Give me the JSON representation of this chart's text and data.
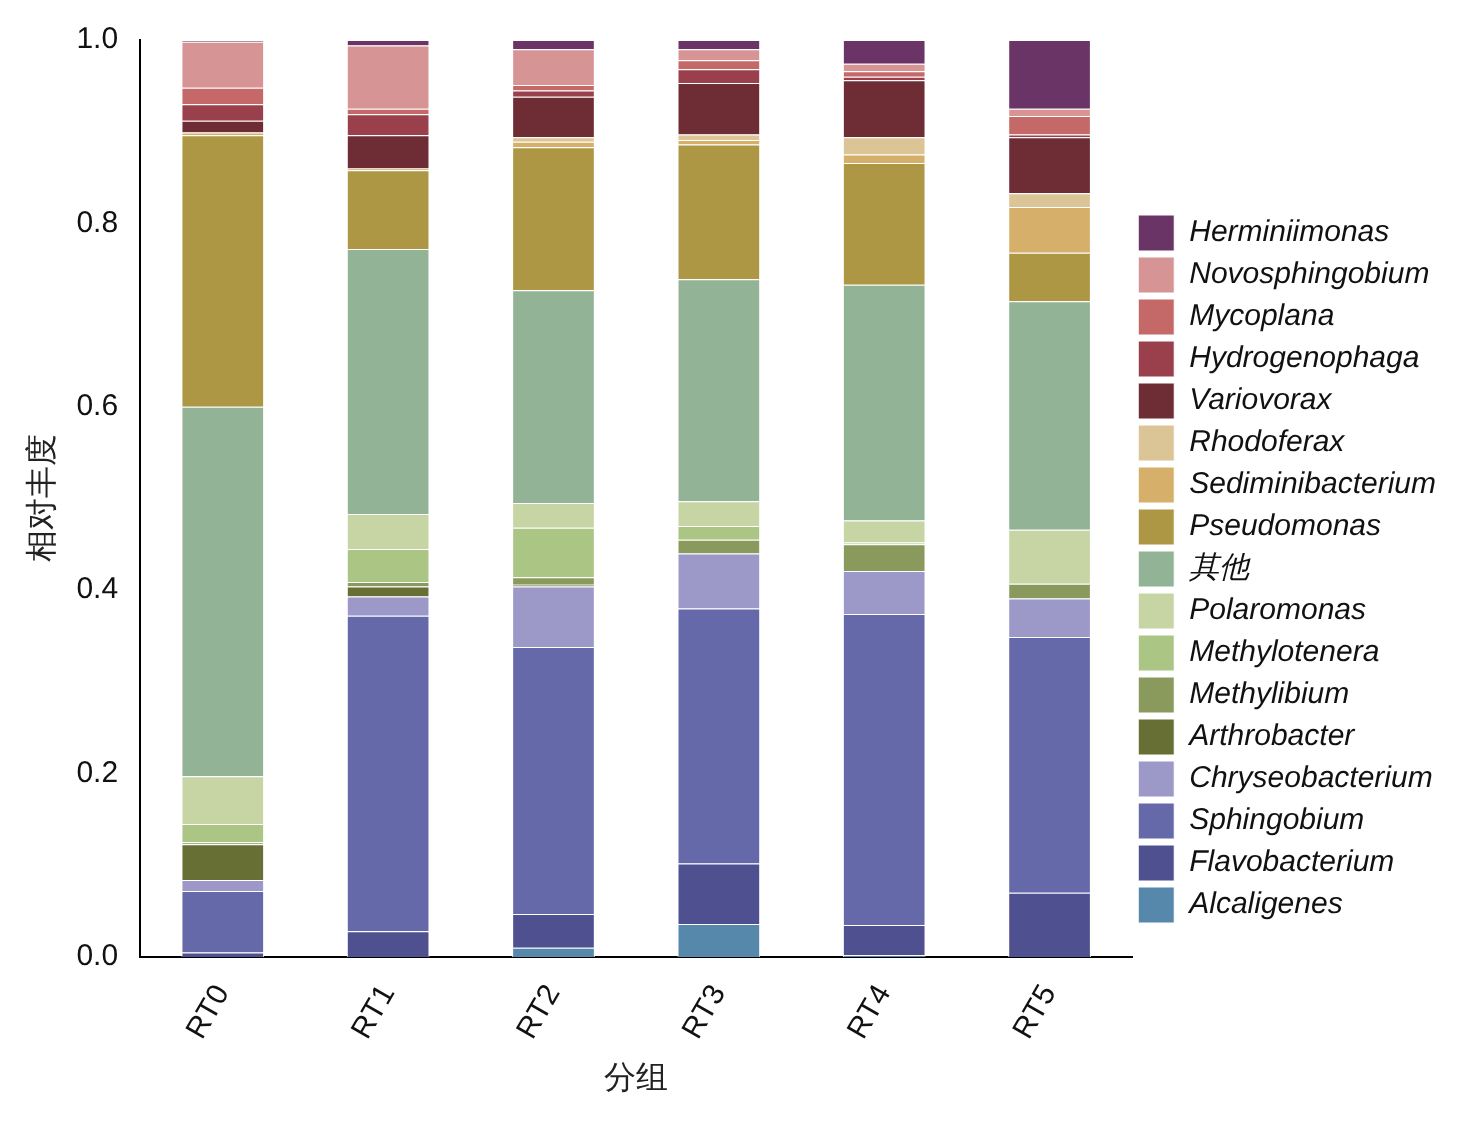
{
  "chart_data": {
    "type": "bar",
    "stacked": true,
    "xlabel": "分组",
    "ylabel": "相对丰度",
    "categories": [
      "RT0",
      "RT1",
      "RT2",
      "RT3",
      "RT4",
      "RT5"
    ],
    "ylim": [
      0,
      1
    ],
    "yticks": [
      {
        "value": 0,
        "label": "0.0"
      },
      {
        "value": 0.2,
        "label": "0.2"
      },
      {
        "value": 0.4,
        "label": "0.4"
      },
      {
        "value": 0.6,
        "label": "0.6"
      },
      {
        "value": 0.8,
        "label": "0.8"
      },
      {
        "value": 1,
        "label": "1.0"
      }
    ],
    "grid": false,
    "legend": "right",
    "series": [
      {
        "name": "Alcaligenes",
        "color": "#5588aa",
        "values": [
          0,
          0,
          0.01,
          0.036,
          0.002,
          0
        ]
      },
      {
        "name": "Flavobacterium",
        "color": "#4f5090",
        "values": [
          0.005,
          0.028,
          0.037,
          0.066,
          0.033,
          0.07
        ]
      },
      {
        "name": "Sphingobium",
        "color": "#6669a9",
        "values": [
          0.067,
          0.344,
          0.291,
          0.278,
          0.339,
          0.279
        ]
      },
      {
        "name": "Chryseobacterium",
        "color": "#9c98c8",
        "values": [
          0.012,
          0.021,
          0.066,
          0.06,
          0.047,
          0.042
        ]
      },
      {
        "name": "Arthrobacter",
        "color": "#676f35",
        "values": [
          0.039,
          0.011,
          0.002,
          0,
          0,
          0
        ]
      },
      {
        "name": "Methylibium",
        "color": "#899a5c",
        "values": [
          0.002,
          0.005,
          0.008,
          0.015,
          0.029,
          0.016
        ]
      },
      {
        "name": "Methylotenera",
        "color": "#abc584",
        "values": [
          0.02,
          0.036,
          0.054,
          0.015,
          0.002,
          0
        ]
      },
      {
        "name": "Polaromonas",
        "color": "#c7d4a4",
        "values": [
          0.052,
          0.038,
          0.027,
          0.027,
          0.024,
          0.059
        ]
      },
      {
        "name": "其他",
        "color": "#93b397",
        "values": [
          0.403,
          0.289,
          0.232,
          0.242,
          0.257,
          0.249
        ]
      },
      {
        "name": "Pseudomonas",
        "color": "#ad9744",
        "values": [
          0.296,
          0.086,
          0.156,
          0.147,
          0.133,
          0.053
        ]
      },
      {
        "name": "Sediminibacterium",
        "color": "#d6b06a",
        "values": [
          0.003,
          0.002,
          0.006,
          0.005,
          0.009,
          0.05
        ]
      },
      {
        "name": "Rhodoferax",
        "color": "#dbc496",
        "values": [
          0,
          0,
          0.005,
          0.006,
          0.019,
          0.015
        ]
      },
      {
        "name": "Variovorax",
        "color": "#6e2c34",
        "values": [
          0.013,
          0.036,
          0.044,
          0.056,
          0.062,
          0.061
        ]
      },
      {
        "name": "Hydrogenophaga",
        "color": "#9a404c",
        "values": [
          0.018,
          0.023,
          0.007,
          0.015,
          0.004,
          0.003
        ]
      },
      {
        "name": "Mycoplana",
        "color": "#c46868",
        "values": [
          0.018,
          0.006,
          0.006,
          0.01,
          0.006,
          0.02
        ]
      },
      {
        "name": "Novosphingobium",
        "color": "#d69495",
        "values": [
          0.05,
          0.069,
          0.039,
          0.012,
          0.008,
          0.008
        ]
      },
      {
        "name": "Herminiimonas",
        "color": "#6a3466",
        "values": [
          0.002,
          0.006,
          0.01,
          0.01,
          0.026,
          0.075
        ]
      }
    ]
  }
}
